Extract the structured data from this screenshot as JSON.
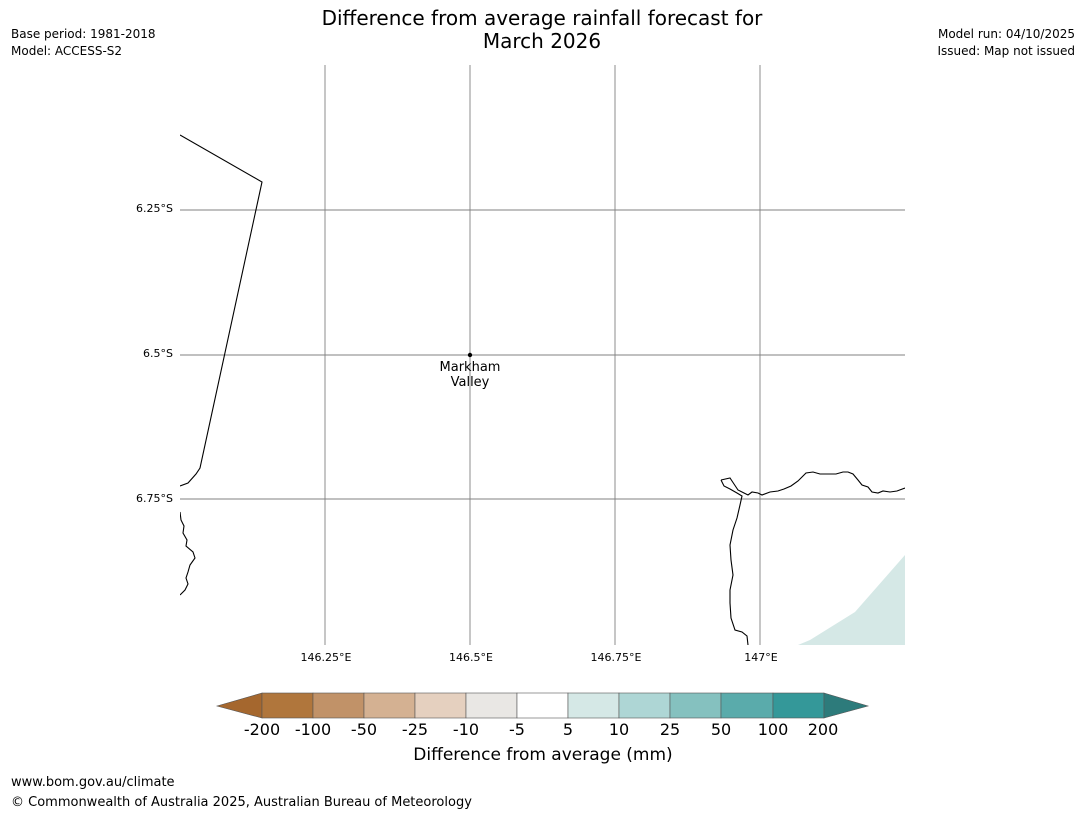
{
  "title": {
    "line1": "Difference from average rainfall forecast for",
    "line2": "March 2026"
  },
  "meta_left": {
    "base_period": "Base period: 1981-2018",
    "model": "Model: ACCESS-S2"
  },
  "meta_right": {
    "model_run": "Model run: 04/10/2025",
    "issued": "Issued: Map not issued"
  },
  "map": {
    "latitude_labels": [
      "6.25°S",
      "6.5°S",
      "6.75°S"
    ],
    "longitude_labels": [
      "146.25°E",
      "146.5°E",
      "146.75°E",
      "147°E"
    ],
    "place": {
      "name_line1": "Markham",
      "name_line2": "Valley",
      "lat": -6.5,
      "lon": 146.5
    },
    "colors": {
      "gridline": "#808080",
      "coastline": "#000000",
      "forecast_fill": "#d5e8e6"
    }
  },
  "colorbar": {
    "title": "Difference from average (mm)",
    "tick_labels": [
      "-200",
      "-100",
      "-50",
      "-25",
      "-10",
      "-5",
      "5",
      "10",
      "25",
      "50",
      "100",
      "200"
    ],
    "colors": {
      "below_min": "#a5672e",
      "bins": [
        "#b0763c",
        "#c19268",
        "#d4b192",
        "#e5d0bf",
        "#e9e7e4",
        "#ffffff",
        "#d5e8e6",
        "#aed6d5",
        "#85c1bf",
        "#5aabab",
        "#349899"
      ],
      "above_max": "#2d7b7b"
    }
  },
  "footer": {
    "url": "www.bom.gov.au/climate",
    "copyright": "© Commonwealth of Australia 2025, Australian Bureau of Meteorology"
  }
}
